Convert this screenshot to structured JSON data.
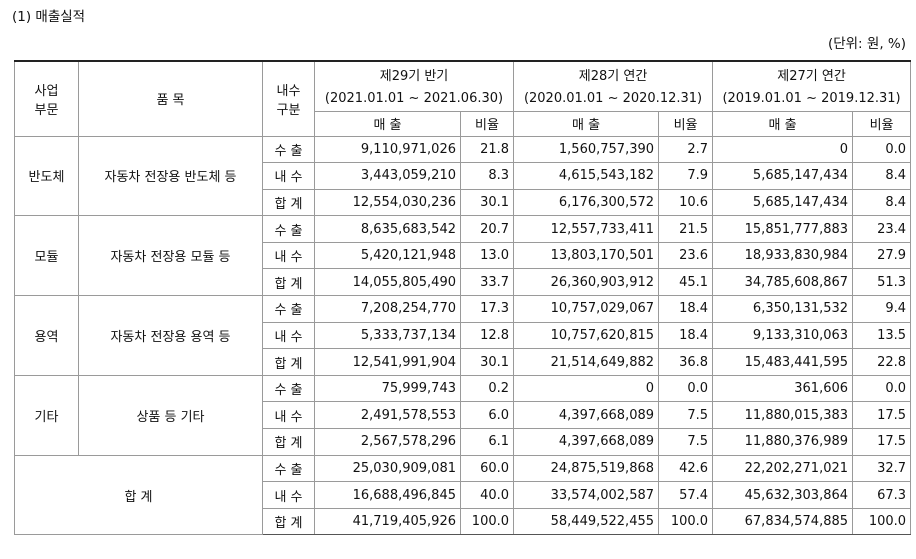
{
  "header": {
    "title": "(1) 매출실적",
    "unit": "(단위: 원, %)"
  },
  "table": {
    "head": {
      "segment": [
        "사업",
        "부문"
      ],
      "product": "품 목",
      "type": [
        "내수",
        "구분"
      ],
      "periods": [
        {
          "name": "제29기 반기",
          "range": "(2021.01.01 ~ 2021.06.30)"
        },
        {
          "name": "제28기 연간",
          "range": "(2020.01.01 ~ 2020.12.31)"
        },
        {
          "name": "제27기 연간",
          "range": "(2019.01.01 ~ 2019.12.31)"
        }
      ],
      "sales": "매 출",
      "ratio": "비율"
    },
    "groups": [
      {
        "segment": "반도체",
        "product": "자동차 전장용 반도체 등",
        "rows": [
          [
            "수 출",
            "9,110,971,026",
            "21.8",
            "1,560,757,390",
            "2.7",
            "0",
            "0.0"
          ],
          [
            "내 수",
            "3,443,059,210",
            "8.3",
            "4,615,543,182",
            "7.9",
            "5,685,147,434",
            "8.4"
          ],
          [
            "합 계",
            "12,554,030,236",
            "30.1",
            "6,176,300,572",
            "10.6",
            "5,685,147,434",
            "8.4"
          ]
        ]
      },
      {
        "segment": "모듈",
        "product": "자동차 전장용 모듈 등",
        "rows": [
          [
            "수 출",
            "8,635,683,542",
            "20.7",
            "12,557,733,411",
            "21.5",
            "15,851,777,883",
            "23.4"
          ],
          [
            "내 수",
            "5,420,121,948",
            "13.0",
            "13,803,170,501",
            "23.6",
            "18,933,830,984",
            "27.9"
          ],
          [
            "합 계",
            "14,055,805,490",
            "33.7",
            "26,360,903,912",
            "45.1",
            "34,785,608,867",
            "51.3"
          ]
        ]
      },
      {
        "segment": "용역",
        "product": "자동차 전장용 용역 등",
        "rows": [
          [
            "수 출",
            "7,208,254,770",
            "17.3",
            "10,757,029,067",
            "18.4",
            "6,350,131,532",
            "9.4"
          ],
          [
            "내 수",
            "5,333,737,134",
            "12.8",
            "10,757,620,815",
            "18.4",
            "9,133,310,063",
            "13.5"
          ],
          [
            "합 계",
            "12,541,991,904",
            "30.1",
            "21,514,649,882",
            "36.8",
            "15,483,441,595",
            "22.8"
          ]
        ]
      },
      {
        "segment": "기타",
        "product": "상품 등 기타",
        "rows": [
          [
            "수 출",
            "75,999,743",
            "0.2",
            "0",
            "0.0",
            "361,606",
            "0.0"
          ],
          [
            "내 수",
            "2,491,578,553",
            "6.0",
            "4,397,668,089",
            "7.5",
            "11,880,015,383",
            "17.5"
          ],
          [
            "합 계",
            "2,567,578,296",
            "6.1",
            "4,397,668,089",
            "7.5",
            "11,880,376,989",
            "17.5"
          ]
        ]
      },
      {
        "segment": "합 계",
        "rows": [
          [
            "수 출",
            "25,030,909,081",
            "60.0",
            "24,875,519,868",
            "42.6",
            "22,202,271,021",
            "32.7"
          ],
          [
            "내 수",
            "16,688,496,845",
            "40.0",
            "33,574,002,587",
            "57.4",
            "45,632,303,864",
            "67.3"
          ],
          [
            "합 계",
            "41,719,405,926",
            "100.0",
            "58,449,522,455",
            "100.0",
            "67,834,574,885",
            "100.0"
          ]
        ]
      }
    ]
  }
}
